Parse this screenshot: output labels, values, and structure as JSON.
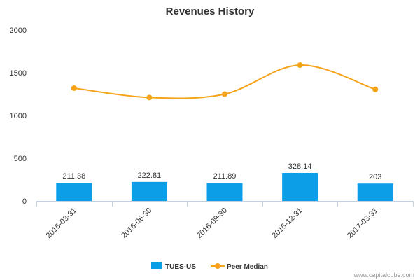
{
  "chart_data": {
    "type": "bar",
    "title": "Revenues History",
    "categories": [
      "2016-03-31",
      "2016-06-30",
      "2016-09-30",
      "2016-12-31",
      "2017-03-31"
    ],
    "ylim": [
      0,
      2000
    ],
    "yticks": [
      0,
      500,
      1000,
      1500,
      2000
    ],
    "series": [
      {
        "name": "TUES-US",
        "type": "bar",
        "color": "#0d9ee8",
        "values": [
          211.38,
          222.81,
          211.89,
          328.14,
          203
        ],
        "data_labels": [
          "211.38",
          "222.81",
          "211.89",
          "328.14",
          "203"
        ]
      },
      {
        "name": "Peer Median",
        "type": "line",
        "color": "#f5a31a",
        "values": [
          1320,
          1210,
          1250,
          1590,
          1305
        ]
      }
    ],
    "legend": "bottom-center",
    "grid": false
  },
  "credit": "www.capitalcube.com"
}
